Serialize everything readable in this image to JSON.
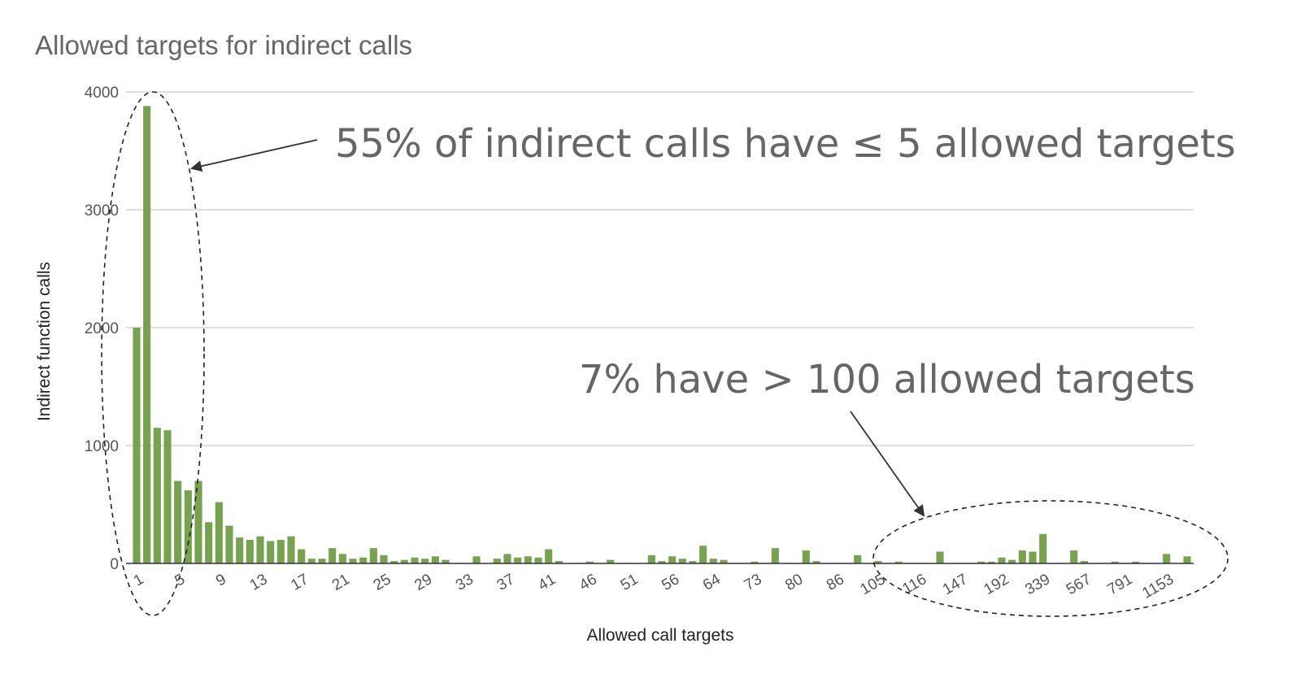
{
  "chart_data": {
    "type": "bar",
    "title": "Allowed targets for indirect calls",
    "xlabel": "Allowed call targets",
    "ylabel": "Indirect function calls",
    "ylim": [
      0,
      4000
    ],
    "yticks": [
      0,
      1000,
      2000,
      3000,
      4000
    ],
    "grid": true,
    "bar_color": "#77a24f",
    "x_tick_labels": [
      "1",
      "5",
      "9",
      "13",
      "17",
      "21",
      "25",
      "29",
      "33",
      "37",
      "41",
      "46",
      "51",
      "56",
      "64",
      "73",
      "80",
      "86",
      "105",
      "116",
      "147",
      "192",
      "339",
      "567",
      "791",
      "1153"
    ],
    "values": [
      2000,
      3880,
      1150,
      1130,
      700,
      620,
      700,
      350,
      520,
      320,
      220,
      200,
      230,
      190,
      200,
      230,
      120,
      40,
      40,
      130,
      80,
      40,
      50,
      130,
      70,
      20,
      30,
      50,
      40,
      60,
      30,
      0,
      0,
      60,
      0,
      40,
      80,
      50,
      60,
      50,
      120,
      20,
      0,
      0,
      15,
      0,
      30,
      0,
      0,
      0,
      70,
      20,
      60,
      40,
      20,
      150,
      40,
      30,
      0,
      0,
      15,
      0,
      130,
      0,
      0,
      110,
      20,
      0,
      0,
      0,
      70,
      0,
      20,
      0,
      15,
      0,
      0,
      0,
      100,
      0,
      0,
      0,
      15,
      15,
      50,
      30,
      110,
      100,
      250,
      0,
      0,
      110,
      20,
      0,
      0,
      15,
      0,
      15,
      0,
      0,
      80,
      0,
      60
    ],
    "annotations": [
      {
        "text": "55% of indirect calls have ≤ 5 allowed targets"
      },
      {
        "text": "7% have > 100 allowed targets"
      }
    ]
  }
}
